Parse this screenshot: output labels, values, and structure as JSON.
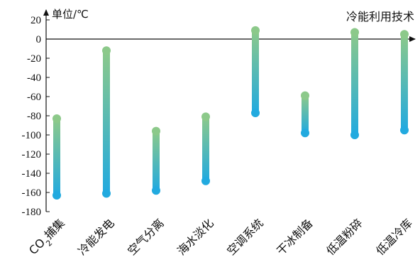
{
  "chart_data": {
    "type": "range-bar",
    "ylabel": "单位/℃",
    "xlabel": "冷能利用技术",
    "ylim": [
      -180,
      20
    ],
    "yticks": [
      20,
      0,
      -20,
      -40,
      -60,
      -80,
      -100,
      -120,
      -140,
      -160,
      -180
    ],
    "categories": [
      "CO2捕集",
      "冷能发电",
      "空气分离",
      "海水淡化",
      "空调系统",
      "干冰制备",
      "低温粉碎",
      "低温冷库"
    ],
    "high": [
      -83,
      -12,
      -96,
      -81,
      9,
      -59,
      7,
      5
    ],
    "low": [
      -163,
      -161,
      -158,
      -148,
      -77,
      -98,
      -100,
      -95
    ],
    "colors": {
      "high": "#8cc98a",
      "low": "#22aadf"
    }
  }
}
